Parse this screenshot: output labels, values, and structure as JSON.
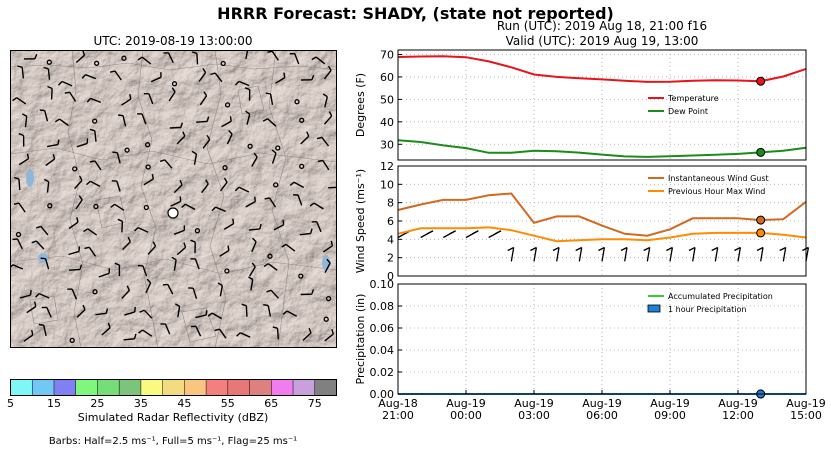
{
  "title": "HRRR Forecast: SHADY, (state not reported)",
  "map": {
    "title": "UTC: 2019-08-19 13:00:00",
    "colorbar_label": "Simulated Radar Reflectivity (dBZ)",
    "colorbar_ticks": [
      "5",
      "15",
      "25",
      "35",
      "45",
      "55",
      "65",
      "75"
    ],
    "colorbar_colors": [
      "#7ef7f7",
      "#72c8f5",
      "#8080f2",
      "#7ef77c",
      "#76de76",
      "#7cc37c",
      "#fafa80",
      "#f3dc80",
      "#f8c680",
      "#f37f7f",
      "#e87878",
      "#dd8080",
      "#f07cf0",
      "#c8a0dc",
      "#808080"
    ],
    "barbs_note": "Barbs: Half=2.5 ms⁻¹, Full=5 ms⁻¹, Flag=25 ms⁻¹"
  },
  "run_label": "Run (UTC): 2019 Aug 18, 21:00 f16",
  "valid_label": "Valid (UTC): 2019 Aug 19, 13:00",
  "colors": {
    "temperature": "#e8141a",
    "dew_point": "#1a8c1a",
    "gust": "#d2691e",
    "max_wind": "#ff8c00",
    "accum_precip": "#32cd32",
    "hourly_precip": "#1e7fd6"
  },
  "chart_data": {
    "type": "line",
    "x": [
      "2019-08-18 21:00",
      "2019-08-18 22:00",
      "2019-08-18 23:00",
      "2019-08-19 00:00",
      "2019-08-19 01:00",
      "2019-08-19 02:00",
      "2019-08-19 03:00",
      "2019-08-19 04:00",
      "2019-08-19 05:00",
      "2019-08-19 06:00",
      "2019-08-19 07:00",
      "2019-08-19 08:00",
      "2019-08-19 09:00",
      "2019-08-19 10:00",
      "2019-08-19 11:00",
      "2019-08-19 12:00",
      "2019-08-19 13:00",
      "2019-08-19 14:00",
      "2019-08-19 15:00"
    ],
    "x_ticks": [
      {
        "line1": "Aug-18",
        "line2": "21:00"
      },
      {
        "line1": "Aug-19",
        "line2": "00:00"
      },
      {
        "line1": "Aug-19",
        "line2": "03:00"
      },
      {
        "line1": "Aug-19",
        "line2": "06:00"
      },
      {
        "line1": "Aug-19",
        "line2": "09:00"
      },
      {
        "line1": "Aug-19",
        "line2": "12:00"
      },
      {
        "line1": "Aug-19",
        "line2": "15:00"
      }
    ],
    "valid_index": 16,
    "panels": [
      {
        "ylabel": "Degrees (F)",
        "ylim": [
          23,
          72
        ],
        "yticks": [
          "30",
          "40",
          "50",
          "60",
          "70"
        ],
        "legend": "center-right",
        "series": [
          {
            "name": "Temperature",
            "values": [
              68.9,
              69.1,
              69.2,
              68.8,
              66.9,
              64.3,
              61.1,
              60.0,
              59.4,
              58.9,
              58.3,
              57.8,
              57.9,
              58.3,
              58.5,
              58.4,
              58.1,
              60.2,
              63.6
            ]
          },
          {
            "name": "Dew Point",
            "values": [
              31.8,
              31.0,
              29.5,
              28.3,
              26.2,
              26.2,
              27.1,
              26.9,
              26.3,
              25.4,
              24.6,
              24.4,
              24.7,
              25.0,
              25.3,
              25.7,
              26.4,
              27.1,
              28.5
            ]
          }
        ]
      },
      {
        "ylabel": "Wind Speed (ms⁻¹)",
        "ylim": [
          0,
          12
        ],
        "yticks": [
          "0",
          "2",
          "4",
          "6",
          "8",
          "10",
          "12"
        ],
        "legend": "top-right",
        "series": [
          {
            "name": "Instantaneous Wind Gust",
            "values": [
              7.2,
              7.8,
              8.3,
              8.3,
              8.8,
              9.0,
              5.8,
              6.5,
              6.5,
              5.5,
              4.6,
              4.4,
              5.1,
              6.3,
              6.3,
              6.3,
              6.1,
              6.2,
              8.1
            ]
          },
          {
            "name": "Previous Hour Max Wind",
            "values": [
              4.6,
              5.2,
              5.2,
              5.2,
              5.3,
              5.0,
              4.4,
              3.8,
              3.9,
              4.0,
              4.0,
              3.9,
              4.2,
              4.6,
              4.7,
              4.7,
              4.7,
              4.5,
              4.2
            ]
          }
        ]
      },
      {
        "ylabel": "Precipitation (in)",
        "ylim": [
          0,
          0.1
        ],
        "yticks": [
          "0.00",
          "0.02",
          "0.04",
          "0.06",
          "0.08",
          "0.10"
        ],
        "legend": "top-right",
        "series": [
          {
            "name": "Accumulated Precipitation",
            "values": [
              0,
              0,
              0,
              0,
              0,
              0,
              0,
              0,
              0,
              0,
              0,
              0,
              0,
              0,
              0,
              0,
              0,
              0,
              0
            ]
          },
          {
            "name": "1 hour Precipitation",
            "values": [
              0,
              0,
              0,
              0,
              0,
              0,
              0,
              0,
              0,
              0,
              0,
              0,
              0,
              0,
              0,
              0,
              0,
              0,
              0
            ]
          }
        ]
      }
    ]
  }
}
